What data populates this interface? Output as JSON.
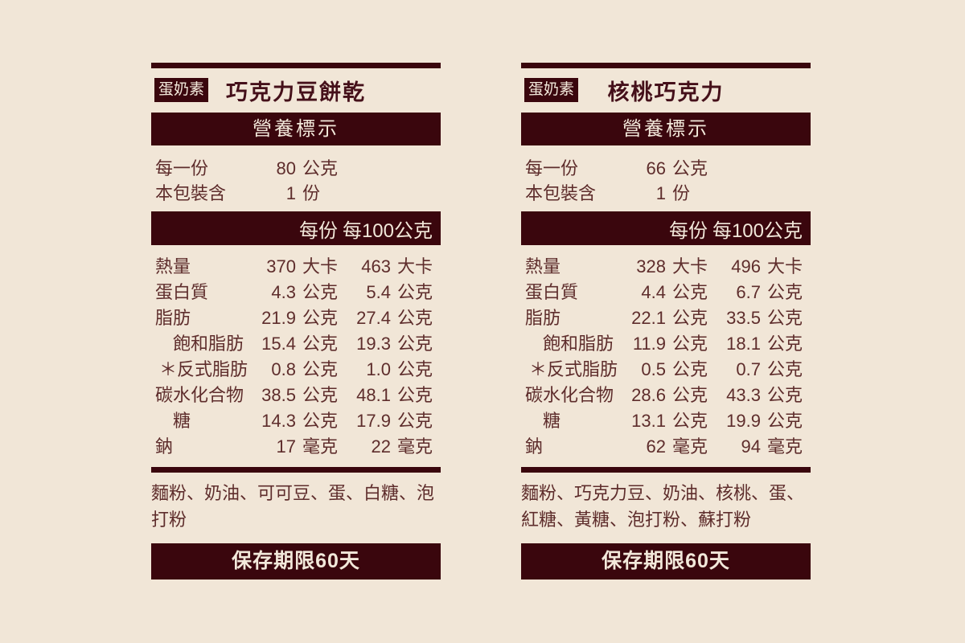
{
  "colors": {
    "background": "#F1E6D7",
    "accent_dark": "#3A060D",
    "body_text": "#5E2D2C",
    "title_text": "#45101A",
    "bar_text": "#F2E8DA"
  },
  "labels": [
    {
      "badge": "蛋奶素",
      "title": "巧克力豆餅乾",
      "nutrition_header": "營養標示",
      "serving": [
        {
          "name": "每一份",
          "value": "80",
          "unit": "公克"
        },
        {
          "name": "本包裝含",
          "value": "1",
          "unit": "份"
        }
      ],
      "columns": {
        "per_serving": "每份",
        "per_100g": "每100公克"
      },
      "rows": [
        {
          "name": "熱量",
          "v1": "370",
          "u1": "大卡",
          "v2": "463",
          "u2": "大卡"
        },
        {
          "name": "蛋白質",
          "v1": "4.3",
          "u1": "公克",
          "v2": "5.4",
          "u2": "公克"
        },
        {
          "name": "脂肪",
          "v1": "21.9",
          "u1": "公克",
          "v2": "27.4",
          "u2": "公克"
        },
        {
          "name": "飽和脂肪",
          "v1": "15.4",
          "u1": "公克",
          "v2": "19.3",
          "u2": "公克"
        },
        {
          "name": "＊反式脂肪",
          "v1": "0.8",
          "u1": "公克",
          "v2": "1.0",
          "u2": "公克"
        },
        {
          "name": "碳水化合物",
          "v1": "38.5",
          "u1": "公克",
          "v2": "48.1",
          "u2": "公克"
        },
        {
          "name": "糖",
          "v1": "14.3",
          "u1": "公克",
          "v2": "17.9",
          "u2": "公克"
        },
        {
          "name": "鈉",
          "v1": "17",
          "u1": "毫克",
          "v2": "22",
          "u2": "毫克"
        }
      ],
      "ingredients": "麵粉、奶油、可可豆、蛋、白糖、泡打粉",
      "shelf_life": "保存期限60天"
    },
    {
      "badge": "蛋奶素",
      "title": "核桃巧克力",
      "nutrition_header": "營養標示",
      "serving": [
        {
          "name": "每一份",
          "value": "66",
          "unit": "公克"
        },
        {
          "name": "本包裝含",
          "value": "1",
          "unit": "份"
        }
      ],
      "columns": {
        "per_serving": "每份",
        "per_100g": "每100公克"
      },
      "rows": [
        {
          "name": "熱量",
          "v1": "328",
          "u1": "大卡",
          "v2": "496",
          "u2": "大卡"
        },
        {
          "name": "蛋白質",
          "v1": "4.4",
          "u1": "公克",
          "v2": "6.7",
          "u2": "公克"
        },
        {
          "name": "脂肪",
          "v1": "22.1",
          "u1": "公克",
          "v2": "33.5",
          "u2": "公克"
        },
        {
          "name": "飽和脂肪",
          "v1": "11.9",
          "u1": "公克",
          "v2": "18.1",
          "u2": "公克"
        },
        {
          "name": "＊反式脂肪",
          "v1": "0.5",
          "u1": "公克",
          "v2": "0.7",
          "u2": "公克"
        },
        {
          "name": "碳水化合物",
          "v1": "28.6",
          "u1": "公克",
          "v2": "43.3",
          "u2": "公克"
        },
        {
          "name": "糖",
          "v1": "13.1",
          "u1": "公克",
          "v2": "19.9",
          "u2": "公克"
        },
        {
          "name": "鈉",
          "v1": "62",
          "u1": "毫克",
          "v2": "94",
          "u2": "毫克"
        }
      ],
      "ingredients": "麵粉、巧克力豆、奶油、核桃、蛋、紅糖、黃糖、泡打粉、蘇打粉",
      "shelf_life": "保存期限60天"
    }
  ]
}
